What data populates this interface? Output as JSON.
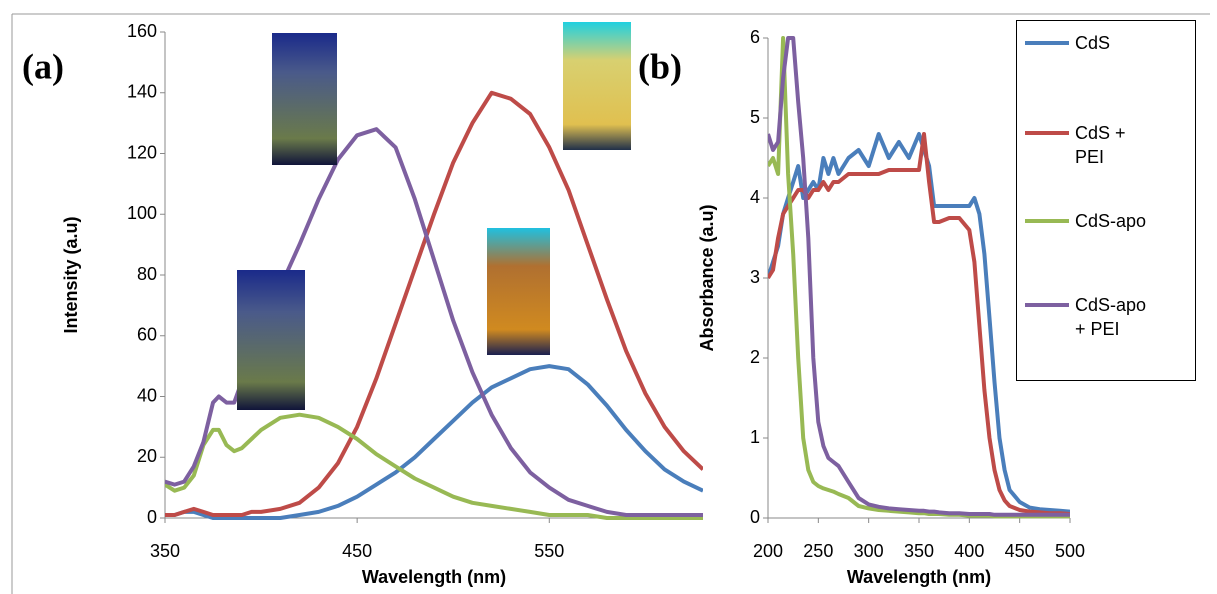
{
  "chart_data": [
    {
      "type": "line",
      "panel_label": "(a)",
      "x_label": "Wavelength (nm)",
      "y_label": "Intensity (a.u)",
      "x": [
        350,
        355,
        360,
        365,
        370,
        375,
        378,
        382,
        386,
        390,
        395,
        400,
        410,
        420,
        430,
        440,
        450,
        460,
        470,
        480,
        490,
        500,
        510,
        520,
        530,
        540,
        550,
        560,
        570,
        580,
        590,
        600,
        610,
        620,
        630
      ],
      "xlim": [
        350,
        630
      ],
      "xticks": [
        350,
        450,
        550
      ],
      "ylim": [
        0,
        160
      ],
      "yticks": [
        0,
        20,
        40,
        60,
        80,
        100,
        120,
        140,
        160
      ],
      "series": [
        {
          "color": "#4a7ebb",
          "values": [
            1,
            1,
            2,
            2,
            1,
            0,
            0,
            0,
            0,
            0,
            0,
            0,
            0,
            1,
            2,
            4,
            7,
            11,
            15,
            20,
            26,
            32,
            38,
            43,
            46,
            49,
            50,
            49,
            44,
            37,
            29,
            22,
            16,
            12,
            9
          ]
        },
        {
          "color": "#be4b48",
          "values": [
            1,
            1,
            2,
            3,
            2,
            1,
            1,
            1,
            1,
            1,
            2,
            2,
            3,
            5,
            10,
            18,
            30,
            46,
            64,
            82,
            100,
            117,
            130,
            140,
            138,
            133,
            122,
            108,
            90,
            72,
            55,
            41,
            30,
            22,
            16
          ]
        },
        {
          "color": "#98b954",
          "values": [
            11,
            9,
            10,
            14,
            24,
            29,
            29,
            24,
            22,
            23,
            26,
            29,
            33,
            34,
            33,
            30,
            26,
            21,
            17,
            13,
            10,
            7,
            5,
            4,
            3,
            2,
            1,
            1,
            1,
            0,
            0,
            0,
            0,
            0,
            0
          ]
        },
        {
          "color": "#7d60a0",
          "values": [
            12,
            11,
            12,
            17,
            25,
            38,
            40,
            38,
            38,
            45,
            55,
            62,
            76,
            90,
            105,
            118,
            126,
            128,
            122,
            105,
            85,
            65,
            48,
            34,
            23,
            15,
            10,
            6,
            4,
            2,
            1,
            1,
            1,
            1,
            1
          ]
        }
      ]
    },
    {
      "type": "line",
      "panel_label": "(b)",
      "x_label": "Wavelength (nm)",
      "y_label": "Absorbance (a.u)",
      "legend": "right",
      "x": [
        200,
        205,
        210,
        215,
        220,
        225,
        230,
        235,
        240,
        245,
        250,
        255,
        260,
        265,
        270,
        280,
        290,
        300,
        310,
        320,
        330,
        340,
        350,
        355,
        360,
        365,
        370,
        380,
        390,
        400,
        405,
        410,
        415,
        420,
        425,
        430,
        435,
        440,
        450,
        460,
        470,
        480,
        490,
        500
      ],
      "xlim": [
        200,
        500
      ],
      "xticks": [
        200,
        250,
        300,
        350,
        400,
        450,
        500
      ],
      "ylim": [
        0,
        6
      ],
      "yticks": [
        0,
        1,
        2,
        3,
        4,
        5,
        6
      ],
      "series": [
        {
          "name": "CdS",
          "color": "#4a7ebb",
          "values": [
            3.0,
            3.2,
            3.4,
            3.8,
            4.0,
            4.2,
            4.4,
            4.0,
            4.1,
            4.2,
            4.1,
            4.5,
            4.3,
            4.5,
            4.3,
            4.5,
            4.6,
            4.4,
            4.8,
            4.5,
            4.7,
            4.5,
            4.8,
            4.6,
            4.4,
            3.9,
            3.9,
            3.9,
            3.9,
            3.9,
            4.0,
            3.8,
            3.3,
            2.5,
            1.7,
            1.0,
            0.6,
            0.35,
            0.2,
            0.13,
            0.11,
            0.1,
            0.09,
            0.08
          ]
        },
        {
          "name": "CdS + PEI",
          "color": "#be4b48",
          "values": [
            3.0,
            3.1,
            3.5,
            3.8,
            3.9,
            4.0,
            4.1,
            4.1,
            4.0,
            4.1,
            4.1,
            4.2,
            4.1,
            4.2,
            4.2,
            4.3,
            4.3,
            4.3,
            4.3,
            4.35,
            4.35,
            4.35,
            4.35,
            4.8,
            4.2,
            3.7,
            3.7,
            3.75,
            3.75,
            3.6,
            3.2,
            2.4,
            1.6,
            1.0,
            0.6,
            0.35,
            0.22,
            0.15,
            0.1,
            0.08,
            0.07,
            0.06,
            0.06,
            0.05
          ]
        },
        {
          "name": "CdS-apo",
          "color": "#98b954",
          "values": [
            4.4,
            4.5,
            4.3,
            6,
            4.3,
            3.3,
            2.0,
            1.0,
            0.6,
            0.45,
            0.4,
            0.37,
            0.35,
            0.33,
            0.3,
            0.25,
            0.15,
            0.12,
            0.1,
            0.09,
            0.08,
            0.07,
            0.06,
            0.06,
            0.05,
            0.05,
            0.05,
            0.04,
            0.04,
            0.03,
            0.03,
            0.03,
            0.03,
            0.03,
            0.02,
            0.02,
            0.02,
            0.02,
            0.02,
            0.02,
            0.02,
            0.02,
            0.02,
            0.02
          ]
        },
        {
          "name": "CdS-apo + PEI",
          "color": "#7d60a0",
          "values": [
            4.8,
            4.6,
            4.7,
            5.5,
            6,
            6,
            5.2,
            4.5,
            3.5,
            2.0,
            1.2,
            0.9,
            0.75,
            0.7,
            0.65,
            0.45,
            0.25,
            0.17,
            0.14,
            0.12,
            0.11,
            0.1,
            0.09,
            0.09,
            0.08,
            0.08,
            0.07,
            0.06,
            0.06,
            0.05,
            0.05,
            0.05,
            0.05,
            0.05,
            0.04,
            0.04,
            0.04,
            0.04,
            0.04,
            0.04,
            0.04,
            0.04,
            0.04,
            0.04
          ]
        }
      ]
    }
  ]
}
